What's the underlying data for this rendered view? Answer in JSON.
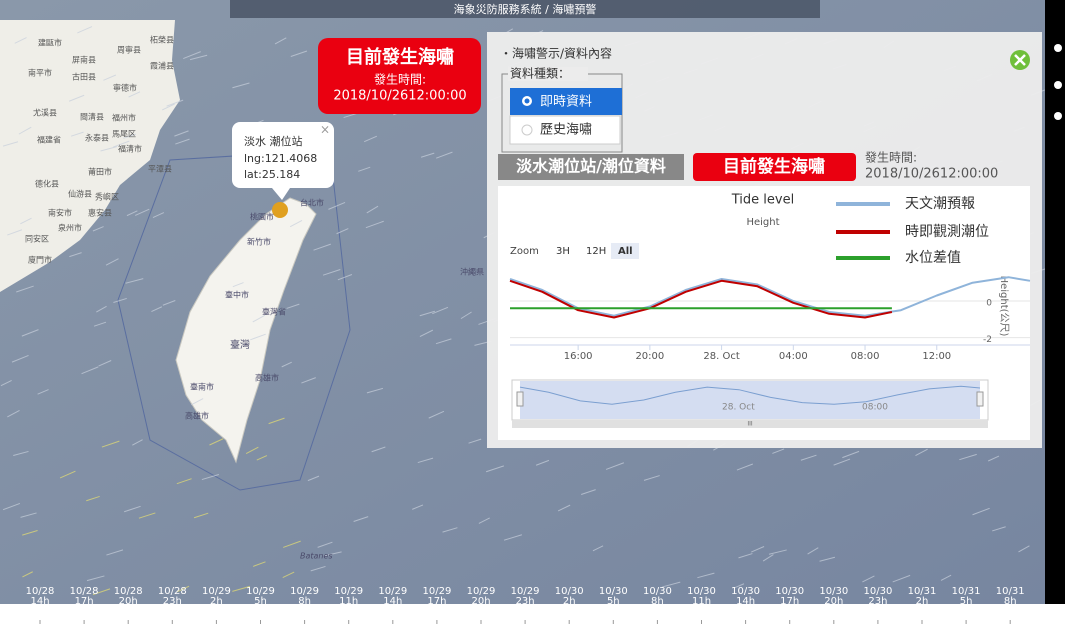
{
  "header": {
    "title": "海象災防服務系統 / 海嘯預警"
  },
  "map": {
    "labels": [
      "建甌市",
      "周寧县",
      "柘榮县",
      "屏南县",
      "南平市",
      "霞浦县",
      "古田县",
      "寧德市",
      "尤溪县",
      "閩清县",
      "福州市",
      "永泰县",
      "馬尾区",
      "福建省",
      "福清市",
      "平潭县",
      "莆田市",
      "德化县",
      "仙游县",
      "秀嶼区",
      "南安市",
      "惠安县",
      "泉州市",
      "同安区",
      "廈門市",
      "台北市",
      "桃園市",
      "新竹市",
      "沖繩県",
      "臺中市",
      "臺灣省",
      "臺灣",
      "高雄市",
      "臺南市",
      "高雄市",
      "Batanes"
    ],
    "popup": {
      "title": "淡水 潮位站",
      "lng": "lng:121.4068",
      "lat": "lat:25.184",
      "close": "×"
    }
  },
  "alert": {
    "title": "目前發生海嘯",
    "time_label": "發生時間:",
    "time": "2018/10/2612:00:00"
  },
  "panel": {
    "heading": "・海嘯警示/資料內容",
    "legend": "資料種類：",
    "options": [
      "即時資料",
      "歷史海嘯"
    ],
    "station": "淡水潮位站/潮位資料",
    "status": "目前發生海嘯",
    "time_label": "發生時間:",
    "time": "2018/10/2612:00:00"
  },
  "chart_data": {
    "type": "line",
    "title": "Tide level",
    "subtitle": "Height",
    "y_label": "Height(公尺)",
    "zoom": {
      "label": "Zoom",
      "buttons": [
        "3H",
        "12H",
        "All"
      ]
    },
    "xlim": [
      12.2,
      41.2
    ],
    "xticks": [
      {
        "value": 16,
        "label": "16:00"
      },
      {
        "value": 20,
        "label": "20:00"
      },
      {
        "value": 24,
        "label": "28. Oct"
      },
      {
        "value": 28,
        "label": "04:00"
      },
      {
        "value": 32,
        "label": "08:00"
      },
      {
        "value": 36,
        "label": "12:00"
      }
    ],
    "ylim": [
      -2.4,
      1.8
    ],
    "yticks": [
      -2,
      0
    ],
    "grid": true,
    "series": [
      {
        "name": "天文潮預報",
        "color": "#8fb4da",
        "x": [
          12.2,
          14,
          16,
          18,
          20,
          22,
          24,
          26,
          28,
          30,
          32,
          34,
          36,
          38,
          40,
          41.2
        ],
        "values": [
          1.2,
          0.6,
          -0.4,
          -0.8,
          -0.3,
          0.6,
          1.2,
          0.9,
          0.0,
          -0.6,
          -0.8,
          -0.5,
          0.3,
          1.0,
          1.3,
          1.1
        ]
      },
      {
        "name": "時即觀測潮位",
        "color": "#c00000",
        "x": [
          12.2,
          14,
          16,
          18,
          20,
          22,
          24,
          26,
          28,
          30,
          32,
          33.5
        ],
        "values": [
          1.1,
          0.5,
          -0.5,
          -0.9,
          -0.4,
          0.5,
          1.1,
          0.8,
          -0.1,
          -0.7,
          -0.9,
          -0.6
        ]
      },
      {
        "name": "水位差值",
        "color": "#2ca02c",
        "x": [
          12.2,
          33.5
        ],
        "values": [
          -0.4,
          -0.4
        ]
      }
    ],
    "navigator": {
      "labels": [
        "28. Oct",
        "08:00"
      ],
      "scroll": "III"
    }
  },
  "timeline": [
    [
      "10/28",
      "14h"
    ],
    [
      "10/28",
      "17h"
    ],
    [
      "10/28",
      "20h"
    ],
    [
      "10/28",
      "23h"
    ],
    [
      "10/29",
      "2h"
    ],
    [
      "10/29",
      "5h"
    ],
    [
      "10/29",
      "8h"
    ],
    [
      "10/29",
      "11h"
    ],
    [
      "10/29",
      "14h"
    ],
    [
      "10/29",
      "17h"
    ],
    [
      "10/29",
      "20h"
    ],
    [
      "10/29",
      "23h"
    ],
    [
      "10/30",
      "2h"
    ],
    [
      "10/30",
      "5h"
    ],
    [
      "10/30",
      "8h"
    ],
    [
      "10/30",
      "11h"
    ],
    [
      "10/30",
      "14h"
    ],
    [
      "10/30",
      "17h"
    ],
    [
      "10/30",
      "20h"
    ],
    [
      "10/30",
      "23h"
    ],
    [
      "10/31",
      "2h"
    ],
    [
      "10/31",
      "5h"
    ],
    [
      "10/31",
      "8h"
    ]
  ]
}
